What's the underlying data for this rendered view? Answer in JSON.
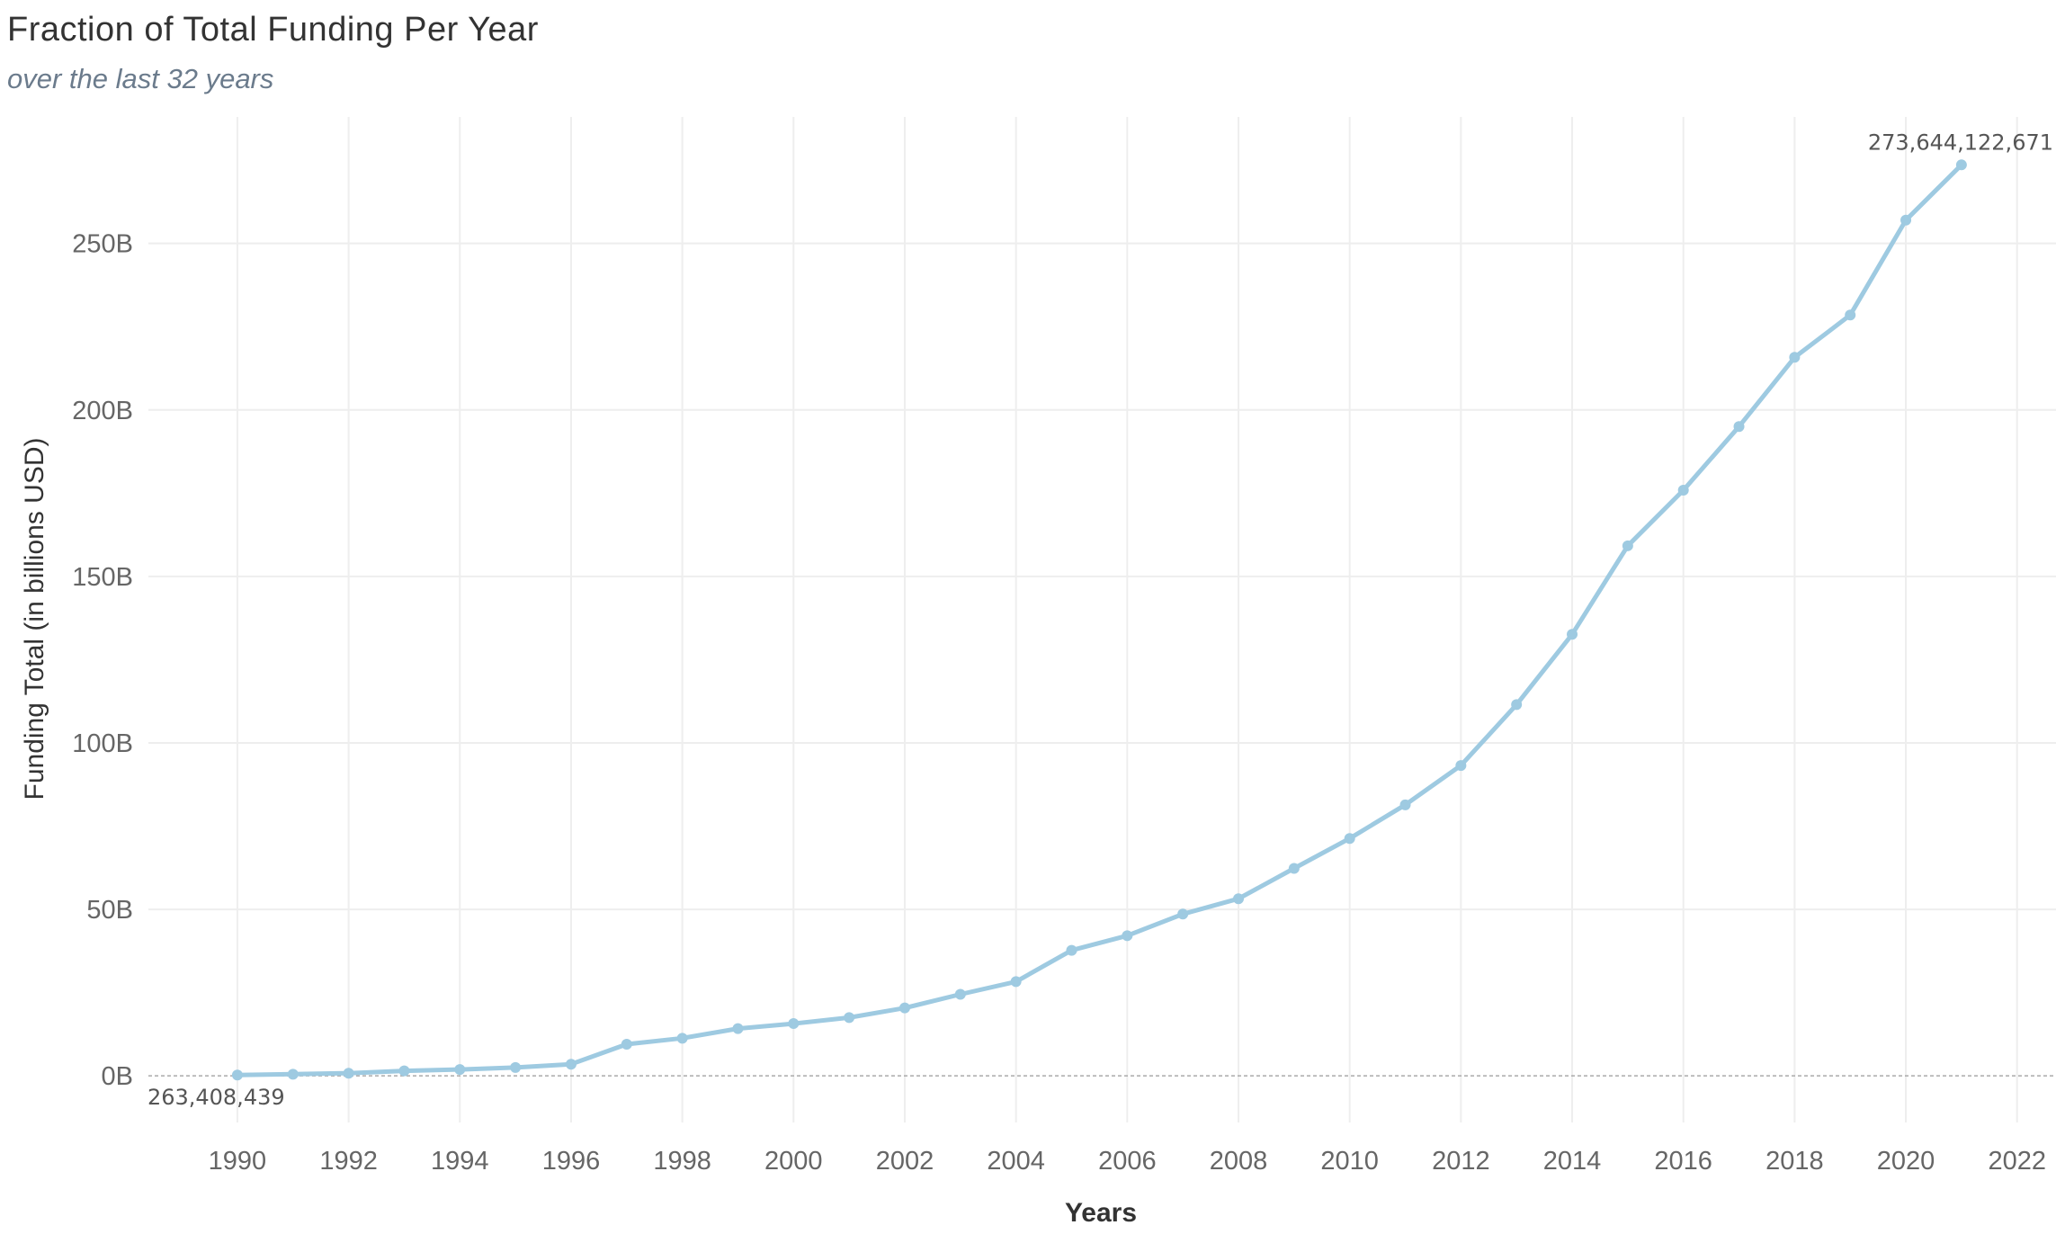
{
  "title": "Fraction of Total Funding Per Year",
  "subtitle": "over the last 32 years",
  "chart_data": {
    "type": "line",
    "title": "Fraction of Total Funding Per Year",
    "subtitle": "over the last 32 years",
    "xlabel": "Years",
    "ylabel": "Funding Total (in billions USD)",
    "xlim": [
      1988.4,
      2022.7
    ],
    "ylim": [
      -14,
      288
    ],
    "x_ticks": [
      1990,
      1992,
      1994,
      1996,
      1998,
      2000,
      2002,
      2004,
      2006,
      2008,
      2010,
      2012,
      2014,
      2016,
      2018,
      2020,
      2022
    ],
    "y_ticks": [
      0,
      50,
      100,
      150,
      200,
      250
    ],
    "y_tick_labels": [
      "0B",
      "50B",
      "100B",
      "150B",
      "200B",
      "250B"
    ],
    "grid": true,
    "line_color": "#9ecae1",
    "series": [
      {
        "x": [
          1990,
          1991,
          1992,
          1993,
          1994,
          1995,
          1996,
          1997,
          1998,
          1999,
          2000,
          2001,
          2002,
          2003,
          2004,
          2005,
          2006,
          2007,
          2008,
          2009,
          2010,
          2011,
          2012,
          2013,
          2014,
          2015,
          2016,
          2017,
          2018,
          2019,
          2020,
          2021
        ],
        "values": [
          0.263,
          0.5,
          0.8,
          1.5,
          1.9,
          2.5,
          3.5,
          9.5,
          11.3,
          14.2,
          15.7,
          17.5,
          20.4,
          24.5,
          28.3,
          37.7,
          42.1,
          48.6,
          53.2,
          62.3,
          71.3,
          81.4,
          93.2,
          111.5,
          132.6,
          159.2,
          175.9,
          195.0,
          215.8,
          228.5,
          257.0,
          273.6
        ]
      }
    ],
    "annotations": [
      {
        "x": 1990,
        "y": 0.263,
        "text": "263,408,439"
      },
      {
        "x": 2021,
        "y": 273.6,
        "text": "273,644,122,671"
      }
    ]
  }
}
